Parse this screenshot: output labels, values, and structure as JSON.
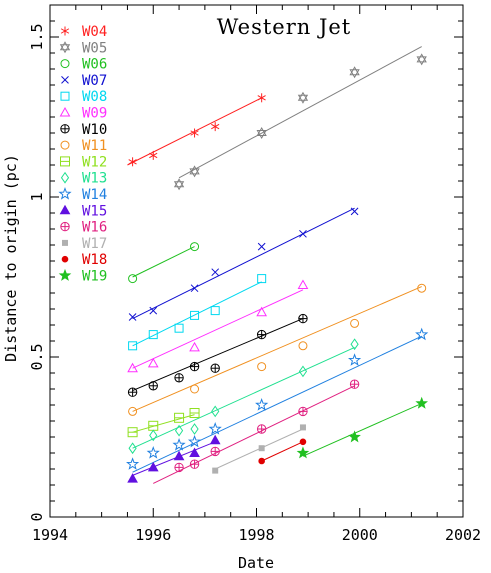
{
  "chart_data": {
    "type": "scatter",
    "title": "Western Jet",
    "xlabel": "Date",
    "ylabel": "Distance to origin (pc)",
    "xlim": [
      1994,
      2002
    ],
    "ylim": [
      0,
      1.6
    ],
    "x_tick_labels": [
      "1994",
      "1996",
      "1998",
      "2000",
      "2002"
    ],
    "y_tick_labels": [
      "0",
      "0.5",
      "1",
      "1.5"
    ],
    "legend_position": "top-left",
    "series": [
      {
        "name": "W04",
        "color": "#ff2020",
        "marker": "asterisk",
        "x": [
          1995.6,
          1996.0,
          1996.8,
          1997.2,
          1998.1
        ],
        "y": [
          1.11,
          1.13,
          1.2,
          1.22,
          1.31
        ],
        "fit": [
          [
            1995.5,
            1.1
          ],
          [
            1998.1,
            1.31
          ]
        ]
      },
      {
        "name": "W05",
        "color": "#808080",
        "marker": "star-of-david",
        "x": [
          1996.5,
          1996.8,
          1998.1,
          1998.9,
          1999.9,
          2001.2
        ],
        "y": [
          1.04,
          1.08,
          1.2,
          1.31,
          1.39,
          1.43
        ],
        "fit": [
          [
            1996.5,
            1.06
          ],
          [
            2001.2,
            1.47
          ]
        ]
      },
      {
        "name": "W06",
        "color": "#20c020",
        "marker": "circle",
        "x": [
          1995.6,
          1996.8
        ],
        "y": [
          0.745,
          0.845
        ],
        "fit": [
          [
            1995.6,
            0.75
          ],
          [
            1996.8,
            0.845
          ]
        ]
      },
      {
        "name": "W07",
        "color": "#1010d0",
        "marker": "cross",
        "x": [
          1995.6,
          1996.0,
          1996.8,
          1997.2,
          1998.1,
          1998.9,
          1999.9
        ],
        "y": [
          0.625,
          0.645,
          0.715,
          0.765,
          0.845,
          0.885,
          0.955
        ],
        "fit": [
          [
            1995.6,
            0.62
          ],
          [
            1999.9,
            0.965
          ]
        ]
      },
      {
        "name": "W08",
        "color": "#00d8f0",
        "marker": "square",
        "x": [
          1995.6,
          1996.0,
          1996.5,
          1996.8,
          1997.2,
          1998.1
        ],
        "y": [
          0.535,
          0.57,
          0.59,
          0.63,
          0.645,
          0.745
        ],
        "fit": [
          [
            1995.6,
            0.535
          ],
          [
            1998.1,
            0.735
          ]
        ]
      },
      {
        "name": "W09",
        "color": "#ff30ff",
        "marker": "triangle",
        "x": [
          1995.6,
          1996.0,
          1996.8,
          1998.1,
          1998.9
        ],
        "y": [
          0.465,
          0.48,
          0.53,
          0.64,
          0.725
        ],
        "fit": [
          [
            1995.6,
            0.465
          ],
          [
            1998.9,
            0.71
          ]
        ]
      },
      {
        "name": "W10",
        "color": "#000000",
        "marker": "circle-plus",
        "x": [
          1995.6,
          1996.0,
          1996.5,
          1996.8,
          1997.2,
          1998.1,
          1998.9
        ],
        "y": [
          0.39,
          0.41,
          0.435,
          0.47,
          0.465,
          0.57,
          0.62
        ],
        "fit": [
          [
            1995.6,
            0.395
          ],
          [
            1998.9,
            0.62
          ]
        ]
      },
      {
        "name": "W11",
        "color": "#f09020",
        "marker": "circle",
        "x": [
          1995.6,
          1996.8,
          1998.1,
          1998.9,
          1999.9,
          2001.2
        ],
        "y": [
          0.33,
          0.4,
          0.47,
          0.535,
          0.605,
          0.715
        ],
        "fit": [
          [
            1995.6,
            0.33
          ],
          [
            2001.2,
            0.72
          ]
        ]
      },
      {
        "name": "W12",
        "color": "#90e020",
        "marker": "box-square",
        "x": [
          1995.6,
          1996.0,
          1996.5,
          1996.8
        ],
        "y": [
          0.265,
          0.285,
          0.31,
          0.325
        ],
        "fit": [
          [
            1995.6,
            0.265
          ],
          [
            1996.8,
            0.32
          ]
        ]
      },
      {
        "name": "W13",
        "color": "#20e090",
        "marker": "diamond",
        "x": [
          1995.6,
          1996.0,
          1996.5,
          1996.8,
          1997.2,
          1998.9,
          1999.9
        ],
        "y": [
          0.215,
          0.255,
          0.27,
          0.275,
          0.33,
          0.455,
          0.54
        ],
        "fit": [
          [
            1995.6,
            0.215
          ],
          [
            1999.9,
            0.53
          ]
        ]
      },
      {
        "name": "W14",
        "color": "#2080e0",
        "marker": "star",
        "x": [
          1995.6,
          1996.0,
          1996.5,
          1996.8,
          1997.2,
          1998.1,
          1999.9,
          2001.2
        ],
        "y": [
          0.165,
          0.2,
          0.225,
          0.235,
          0.275,
          0.35,
          0.49,
          0.57
        ],
        "fit": [
          [
            1995.6,
            0.14
          ],
          [
            2001.2,
            0.565
          ]
        ]
      },
      {
        "name": "W15",
        "color": "#6010e0",
        "marker": "filled-triangle",
        "x": [
          1995.6,
          1996.0,
          1996.5,
          1996.8,
          1997.2
        ],
        "y": [
          0.12,
          0.155,
          0.19,
          0.2,
          0.24
        ],
        "fit": [
          [
            1995.6,
            0.13
          ],
          [
            1997.2,
            0.235
          ]
        ]
      },
      {
        "name": "W16",
        "color": "#e02080",
        "marker": "circle-plus",
        "x": [
          1996.5,
          1996.8,
          1997.2,
          1998.1,
          1998.9,
          1999.9
        ],
        "y": [
          0.155,
          0.165,
          0.205,
          0.275,
          0.33,
          0.415
        ],
        "fit": [
          [
            1996.0,
            0.105
          ],
          [
            1999.9,
            0.41
          ]
        ]
      },
      {
        "name": "W17",
        "color": "#b0b0b0",
        "marker": "filled-square",
        "x": [
          1997.2,
          1998.1,
          1998.9
        ],
        "y": [
          0.145,
          0.215,
          0.28
        ],
        "fit": [
          [
            1997.2,
            0.15
          ],
          [
            1998.9,
            0.275
          ]
        ]
      },
      {
        "name": "W18",
        "color": "#e00000",
        "marker": "filled-circle",
        "x": [
          1998.1,
          1998.9
        ],
        "y": [
          0.175,
          0.235
        ],
        "fit": [
          [
            1998.1,
            0.175
          ],
          [
            1998.9,
            0.235
          ]
        ]
      },
      {
        "name": "W19",
        "color": "#20c020",
        "marker": "filled-star",
        "x": [
          1998.9,
          1999.9,
          2001.2
        ],
        "y": [
          0.2,
          0.25,
          0.355
        ],
        "fit": [
          [
            1998.9,
            0.19
          ],
          [
            2001.2,
            0.355
          ]
        ]
      }
    ]
  }
}
